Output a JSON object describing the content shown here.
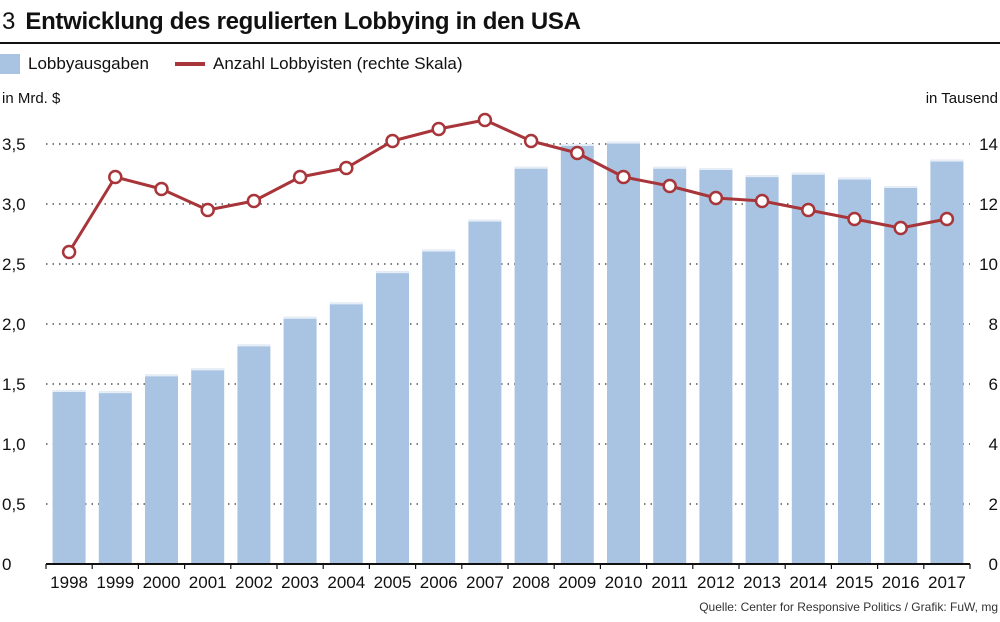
{
  "figure_number": "3",
  "title": "Entwicklung des regulierten Lobbying in den USA",
  "source": "Quelle: Center for Responsive Politics / Grafik: FuW, mg",
  "colors": {
    "bar": "#a9c4e2",
    "line": "#a8353a",
    "marker_fill": "#ffffff",
    "grid": "#555555",
    "axis": "#111111"
  },
  "legend": {
    "bars_label": "Lobbyausgaben",
    "line_label": "Anzahl Lobbyisten (rechte Skala)"
  },
  "chart_data": {
    "type": "bar",
    "title": "Entwicklung des regulierten Lobbying in den USA",
    "categories": [
      "1998",
      "1999",
      "2000",
      "2001",
      "2002",
      "2003",
      "2004",
      "2005",
      "2006",
      "2007",
      "2008",
      "2009",
      "2010",
      "2011",
      "2012",
      "2013",
      "2014",
      "2015",
      "2016",
      "2017"
    ],
    "series": [
      {
        "name": "Lobbyausgaben",
        "type": "bar",
        "axis": "left",
        "values": [
          1.45,
          1.44,
          1.58,
          1.63,
          1.83,
          2.06,
          2.18,
          2.44,
          2.62,
          2.87,
          3.31,
          3.5,
          3.52,
          3.31,
          3.3,
          3.24,
          3.26,
          3.22,
          3.15,
          3.37
        ]
      },
      {
        "name": "Anzahl Lobbyisten (rechte Skala)",
        "type": "line",
        "axis": "right",
        "values": [
          10.4,
          12.9,
          12.5,
          11.8,
          12.1,
          12.9,
          13.2,
          14.1,
          14.5,
          14.8,
          14.1,
          13.7,
          12.9,
          12.6,
          12.2,
          12.1,
          11.8,
          11.5,
          11.2,
          11.5
        ]
      }
    ],
    "ylabel": "in Mrd. $",
    "y2label": "in Tausend",
    "ylim": [
      0,
      3.75
    ],
    "y2lim": [
      0,
      15
    ],
    "yticks": [
      0,
      0.5,
      1.0,
      1.5,
      2.0,
      2.5,
      3.0,
      3.5
    ],
    "ytick_labels": [
      "0",
      "0,5",
      "1,0",
      "1,5",
      "2,0",
      "2,5",
      "3,0",
      "3,5"
    ],
    "y2ticks": [
      0,
      2,
      4,
      6,
      8,
      10,
      12,
      14
    ],
    "y2tick_labels": [
      "0",
      "2",
      "4",
      "6",
      "8",
      "10",
      "12",
      "14"
    ],
    "grid": "horizontal dotted"
  }
}
